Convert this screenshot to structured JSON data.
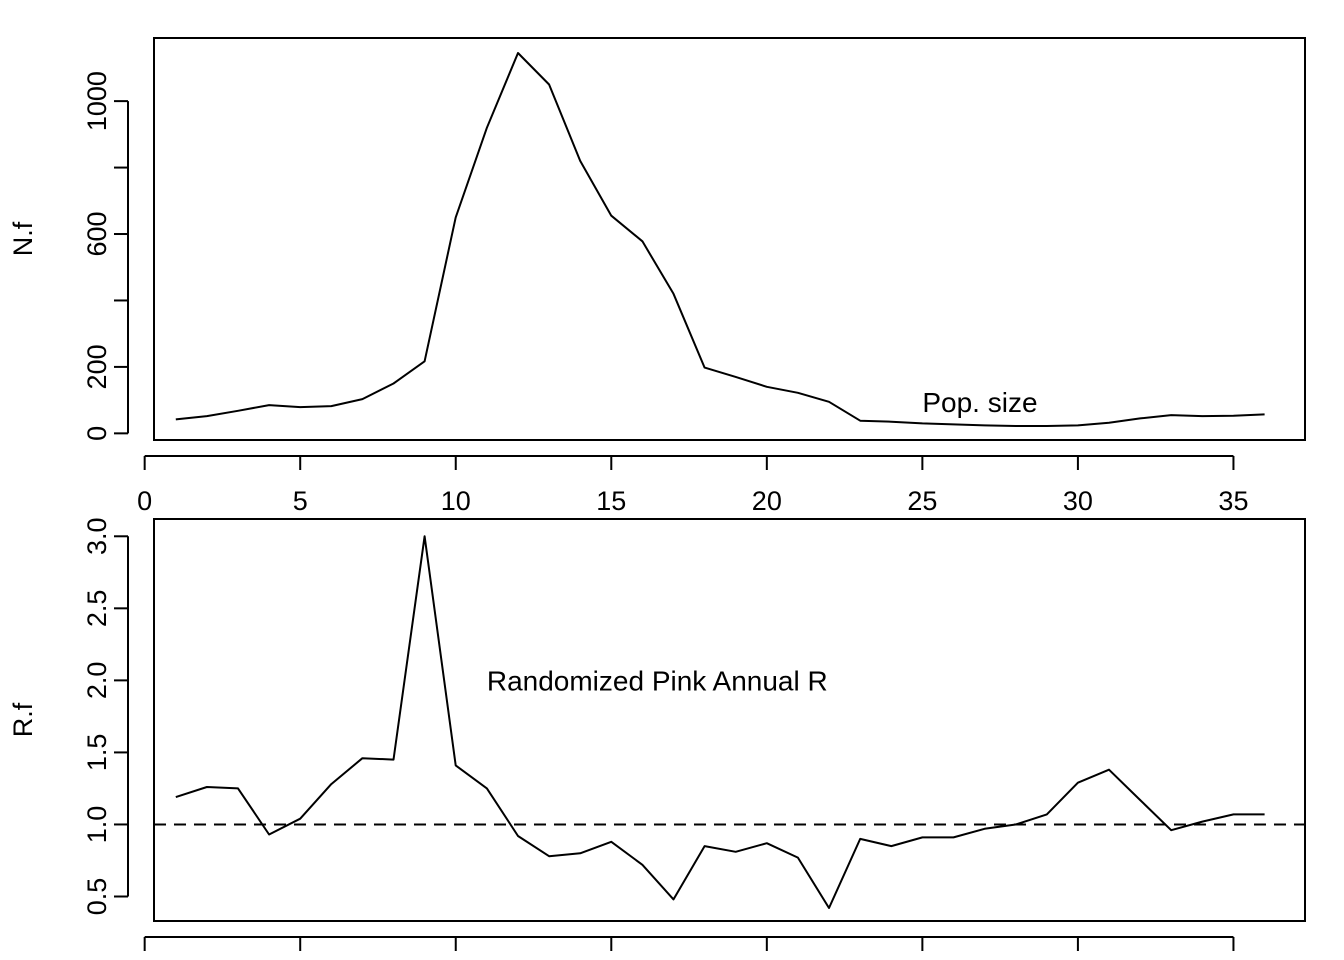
{
  "chart_data": [
    {
      "type": "line",
      "ylabel": "N.f",
      "xlim": [
        0.3,
        37.3
      ],
      "ylim": [
        -20,
        1190
      ],
      "xticks": [
        0,
        5,
        10,
        15,
        20,
        25,
        30,
        35
      ],
      "yticks": [
        0,
        200,
        600,
        1000
      ],
      "yminor_ticks": [
        400,
        800
      ],
      "annotation": {
        "text": "Pop. size",
        "x": 25.0,
        "y": 95
      },
      "series": [
        {
          "x": [
            1,
            2,
            3,
            4,
            5,
            6,
            7,
            8,
            9,
            10,
            11,
            12,
            13,
            14,
            15,
            16,
            17,
            18,
            19,
            20,
            21,
            22,
            23,
            24,
            25,
            26,
            27,
            28,
            29,
            30,
            31,
            32,
            33,
            34,
            35,
            36
          ],
          "values": [
            42,
            52,
            68,
            85,
            79,
            82,
            103,
            150,
            217,
            650,
            920,
            1145,
            1050,
            820,
            655,
            578,
            420,
            198,
            170,
            140,
            122,
            95,
            38,
            35,
            30,
            27,
            24,
            22,
            22,
            24,
            32,
            45,
            55,
            52,
            53,
            57
          ]
        }
      ]
    },
    {
      "type": "line",
      "ylabel": "R.f",
      "xlim": [
        0.3,
        37.3
      ],
      "ylim": [
        0.33,
        3.12
      ],
      "xticks": [
        0,
        5,
        10,
        15,
        20,
        25,
        30,
        35
      ],
      "yticks": [
        0.5,
        1.0,
        1.5,
        2.0,
        2.5,
        3.0
      ],
      "ytick_labels": [
        "0.5",
        "1.0",
        "1.5",
        "2.0",
        "2.5",
        "3.0"
      ],
      "reference_line": {
        "y": 1.0,
        "style": "dashed"
      },
      "annotation": {
        "text": "Randomized Pink Annual R",
        "x": 11.0,
        "y": 2.0
      },
      "series": [
        {
          "x": [
            1,
            2,
            3,
            4,
            5,
            6,
            7,
            8,
            9,
            10,
            11,
            12,
            13,
            14,
            15,
            16,
            17,
            18,
            19,
            20,
            21,
            22,
            23,
            24,
            25,
            26,
            27,
            28,
            29,
            30,
            31,
            32,
            33,
            34,
            35,
            36
          ],
          "values": [
            1.19,
            1.26,
            1.25,
            0.93,
            1.04,
            1.28,
            1.46,
            1.45,
            3.0,
            1.41,
            1.25,
            0.92,
            0.78,
            0.8,
            0.88,
            0.72,
            0.48,
            0.85,
            0.81,
            0.87,
            0.77,
            0.42,
            0.9,
            0.85,
            0.91,
            0.91,
            0.97,
            1.0,
            1.07,
            1.29,
            1.38,
            1.17,
            0.96,
            1.02,
            1.07,
            1.07
          ]
        }
      ]
    }
  ]
}
